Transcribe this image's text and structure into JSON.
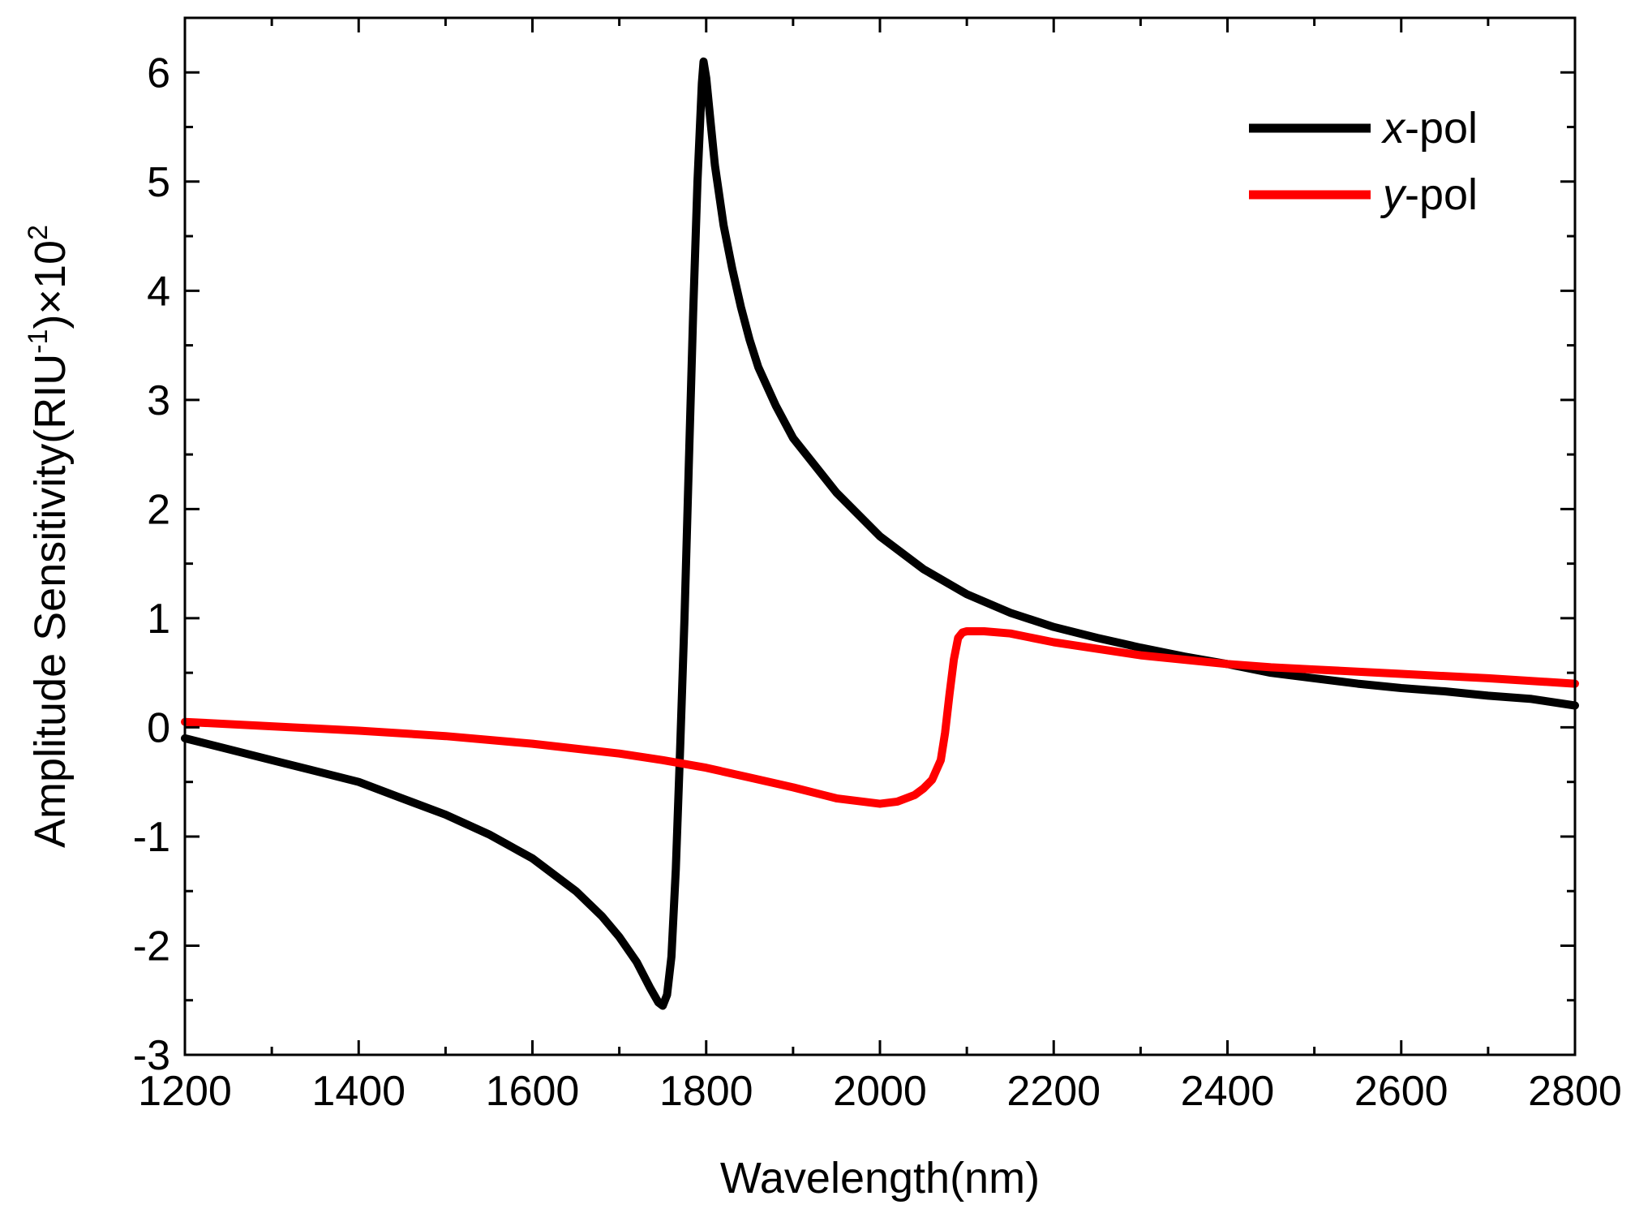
{
  "chart_data": {
    "type": "line",
    "title": "",
    "xlabel": "Wavelength(nm)",
    "ylabel": {
      "prefix": "Amplitude Sensitivity(RIU",
      "sup1": "-1",
      "middle": ")×10",
      "sup2": "2"
    },
    "xlim": [
      1200,
      2800
    ],
    "ylim": [
      -3,
      6.5
    ],
    "xticks": [
      1200,
      1400,
      1600,
      1800,
      2000,
      2200,
      2400,
      2600,
      2800
    ],
    "xtick_labels": [
      "1200",
      "1400",
      "1600",
      "1800",
      "2000",
      "2200",
      "2400",
      "2600",
      "2800"
    ],
    "yticks": [
      -3,
      -2,
      -1,
      0,
      1,
      2,
      3,
      4,
      5,
      6
    ],
    "ytick_labels": [
      "-3",
      "-2",
      "-1",
      "0",
      "1",
      "2",
      "3",
      "4",
      "5",
      "6"
    ],
    "legend_position": "top-right",
    "series": [
      {
        "name": "x-pol",
        "legend_italic": "x",
        "legend_rest": "-pol",
        "color": "#000000",
        "x": [
          1200,
          1250,
          1300,
          1350,
          1400,
          1450,
          1500,
          1550,
          1600,
          1650,
          1680,
          1700,
          1720,
          1735,
          1745,
          1750,
          1755,
          1760,
          1765,
          1770,
          1775,
          1780,
          1785,
          1790,
          1795,
          1797,
          1800,
          1805,
          1810,
          1820,
          1830,
          1840,
          1850,
          1860,
          1880,
          1900,
          1950,
          2000,
          2050,
          2100,
          2150,
          2200,
          2250,
          2300,
          2350,
          2400,
          2450,
          2500,
          2550,
          2600,
          2650,
          2700,
          2750,
          2800
        ],
        "y": [
          -0.1,
          -0.2,
          -0.3,
          -0.4,
          -0.5,
          -0.65,
          -0.8,
          -0.98,
          -1.2,
          -1.5,
          -1.73,
          -1.92,
          -2.15,
          -2.38,
          -2.52,
          -2.55,
          -2.45,
          -2.1,
          -1.3,
          -0.2,
          1.0,
          2.4,
          3.8,
          5.0,
          5.9,
          6.1,
          5.95,
          5.55,
          5.15,
          4.6,
          4.2,
          3.85,
          3.55,
          3.3,
          2.95,
          2.65,
          2.15,
          1.75,
          1.45,
          1.22,
          1.05,
          0.92,
          0.82,
          0.73,
          0.65,
          0.58,
          0.5,
          0.45,
          0.4,
          0.36,
          0.33,
          0.29,
          0.26,
          0.2
        ]
      },
      {
        "name": "y-pol",
        "legend_italic": "y",
        "legend_rest": "-pol",
        "color": "#ff0000",
        "x": [
          1200,
          1300,
          1400,
          1500,
          1600,
          1700,
          1750,
          1800,
          1850,
          1900,
          1950,
          2000,
          2020,
          2040,
          2050,
          2060,
          2070,
          2075,
          2080,
          2085,
          2090,
          2095,
          2100,
          2120,
          2150,
          2200,
          2250,
          2300,
          2350,
          2400,
          2450,
          2500,
          2600,
          2700,
          2800
        ],
        "y": [
          0.05,
          0.01,
          -0.03,
          -0.08,
          -0.15,
          -0.24,
          -0.3,
          -0.37,
          -0.46,
          -0.55,
          -0.65,
          -0.7,
          -0.68,
          -0.62,
          -0.56,
          -0.48,
          -0.3,
          -0.05,
          0.3,
          0.62,
          0.82,
          0.87,
          0.88,
          0.88,
          0.86,
          0.78,
          0.72,
          0.66,
          0.62,
          0.58,
          0.55,
          0.53,
          0.49,
          0.45,
          0.4
        ]
      }
    ]
  }
}
